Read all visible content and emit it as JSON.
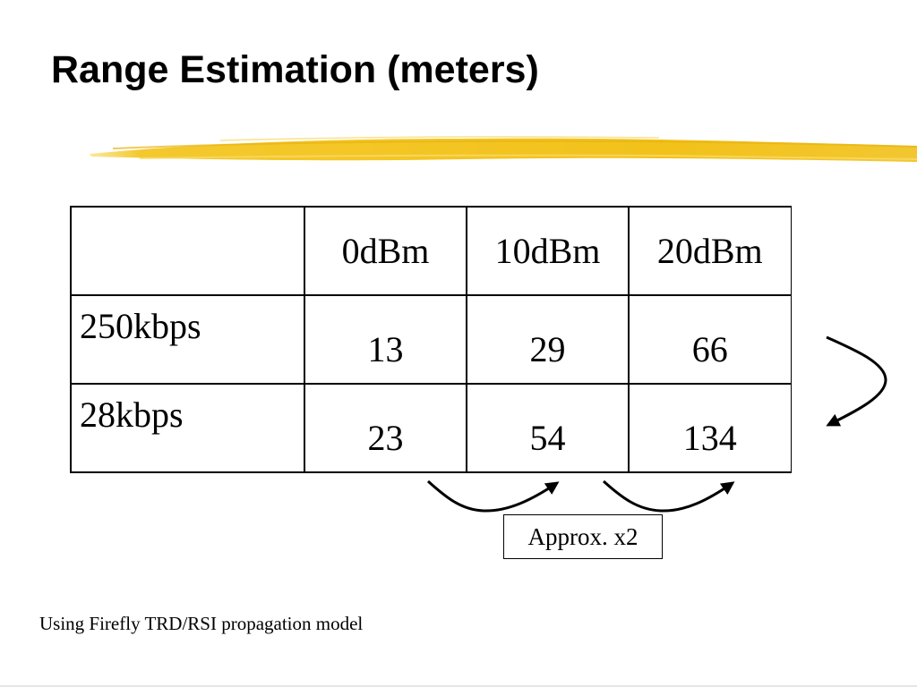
{
  "slide": {
    "title": "Range Estimation (meters)",
    "accent_color": "#f2c21a"
  },
  "table": {
    "column_headers": [
      "0dBm",
      "10dBm",
      "20dBm"
    ],
    "rows": [
      {
        "label": "250kbps",
        "values": [
          "13",
          "29",
          "66"
        ]
      },
      {
        "label": "28kbps",
        "values": [
          "23",
          "54",
          "134"
        ]
      }
    ]
  },
  "annotation": {
    "label": "Approx. x2"
  },
  "footnote": {
    "text": "Using Firefly TRD/RSI propagation model"
  },
  "icons": [
    "curved-arrow-icon"
  ]
}
